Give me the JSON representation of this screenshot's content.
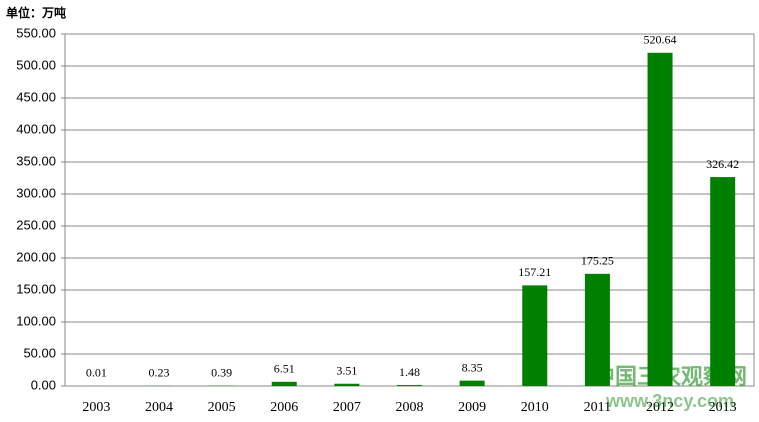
{
  "chart_data": {
    "type": "bar",
    "unit_label": "单位：万吨",
    "categories": [
      "2003",
      "2004",
      "2005",
      "2006",
      "2007",
      "2008",
      "2009",
      "2010",
      "2011",
      "2012",
      "2013"
    ],
    "values": [
      0.01,
      0.23,
      0.39,
      6.51,
      3.51,
      1.48,
      8.35,
      157.21,
      175.25,
      520.64,
      326.42
    ],
    "color": "#008000",
    "ylim": [
      0,
      550
    ],
    "yticks": [
      {
        "value": 0,
        "label": "0.00"
      },
      {
        "value": 50,
        "label": "50.00"
      },
      {
        "value": 100,
        "label": "100.00"
      },
      {
        "value": 150,
        "label": "150.00"
      },
      {
        "value": 200,
        "label": "200.00"
      },
      {
        "value": 250,
        "label": "250.00"
      },
      {
        "value": 300,
        "label": "300.00"
      },
      {
        "value": 350,
        "label": "350.00"
      },
      {
        "value": 400,
        "label": "400.00"
      },
      {
        "value": 450,
        "label": "450.00"
      },
      {
        "value": 500,
        "label": "500.00"
      },
      {
        "value": 550,
        "label": "550.00"
      }
    ],
    "grid": true,
    "watermark": [
      "中国三农观察网",
      "www.3ncy.com"
    ]
  }
}
